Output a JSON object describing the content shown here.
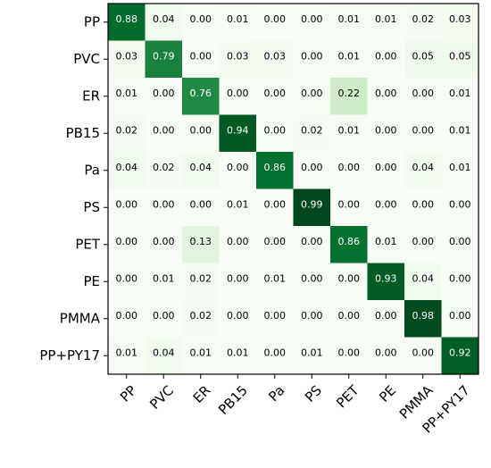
{
  "chart_data": {
    "type": "heatmap",
    "title": "",
    "xlabel": "",
    "ylabel": "",
    "colormap": "Greens",
    "value_range": [
      0,
      1
    ],
    "x_categories": [
      "PP",
      "PVC",
      "ER",
      "PB15",
      "Pa",
      "PS",
      "PET",
      "PE",
      "PMMA",
      "PP+PY17"
    ],
    "y_categories": [
      "PP",
      "PVC",
      "ER",
      "PB15",
      "Pa",
      "PS",
      "PET",
      "PE",
      "PMMA",
      "PP+PY17"
    ],
    "values": [
      [
        0.88,
        0.04,
        0.0,
        0.01,
        0.0,
        0.0,
        0.01,
        0.01,
        0.02,
        0.03
      ],
      [
        0.03,
        0.79,
        0.0,
        0.03,
        0.03,
        0.0,
        0.01,
        0.0,
        0.05,
        0.05
      ],
      [
        0.01,
        0.0,
        0.76,
        0.0,
        0.0,
        0.0,
        0.22,
        0.0,
        0.0,
        0.01
      ],
      [
        0.02,
        0.0,
        0.0,
        0.94,
        0.0,
        0.02,
        0.01,
        0.0,
        0.0,
        0.01
      ],
      [
        0.04,
        0.02,
        0.04,
        0.0,
        0.86,
        0.0,
        0.0,
        0.0,
        0.04,
        0.01
      ],
      [
        0.0,
        0.0,
        0.0,
        0.01,
        0.0,
        0.99,
        0.0,
        0.0,
        0.0,
        0.0
      ],
      [
        0.0,
        0.0,
        0.13,
        0.0,
        0.0,
        0.0,
        0.86,
        0.01,
        0.0,
        0.0
      ],
      [
        0.0,
        0.01,
        0.02,
        0.0,
        0.01,
        0.0,
        0.0,
        0.93,
        0.04,
        0.0
      ],
      [
        0.0,
        0.0,
        0.02,
        0.0,
        0.0,
        0.0,
        0.0,
        0.0,
        0.98,
        0.0
      ],
      [
        0.01,
        0.04,
        0.01,
        0.01,
        0.0,
        0.01,
        0.0,
        0.0,
        0.0,
        0.92
      ]
    ],
    "grid": false,
    "legend": "none"
  }
}
